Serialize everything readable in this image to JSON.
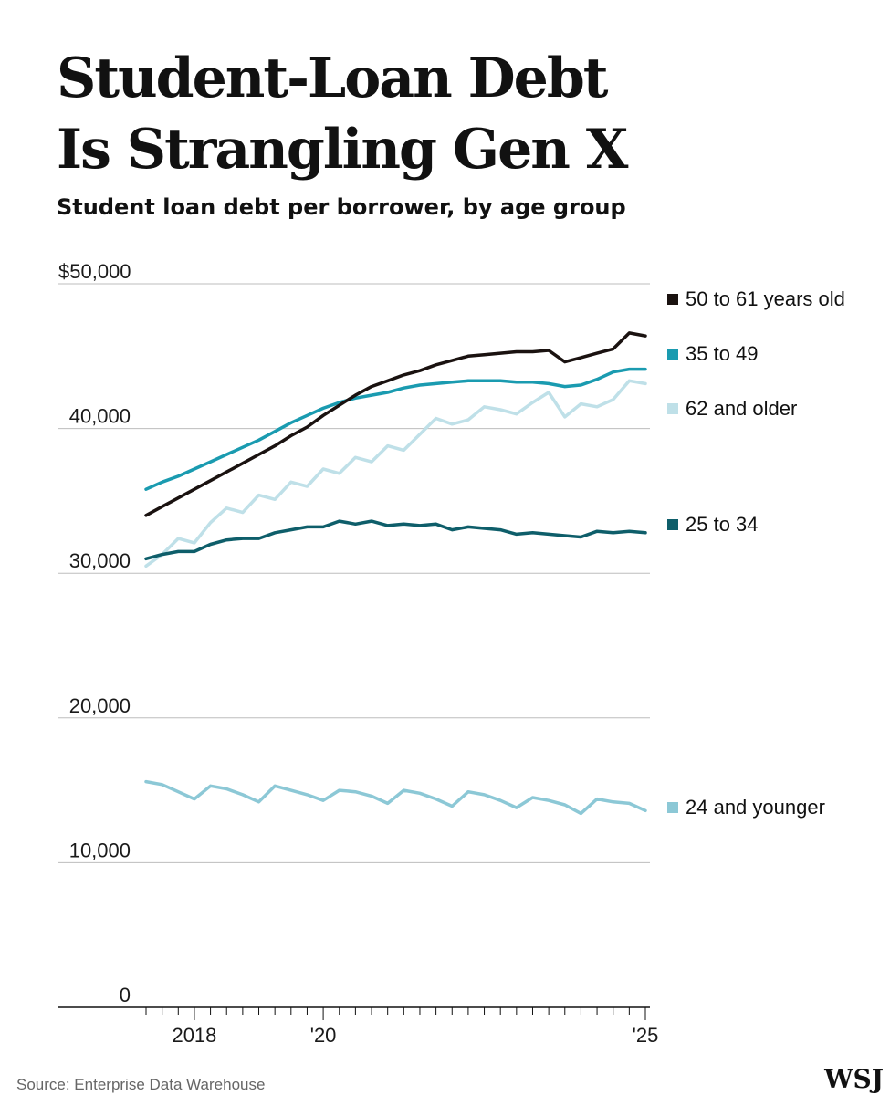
{
  "title_lines": [
    "Student-Loan Debt",
    "Is Strangling Gen X"
  ],
  "chart_data": {
    "type": "line",
    "subtitle": "Student loan debt per borrower, by age group",
    "ylim": [
      0,
      50000
    ],
    "y_ticks": [
      0,
      10000,
      20000,
      30000,
      40000,
      50000
    ],
    "y_tick_labels": [
      "0",
      "10,000",
      "20,000",
      "30,000",
      "40,000",
      "$50,000"
    ],
    "x_range": [
      2017.25,
      2025.0
    ],
    "x_ticks": [
      2018,
      2020,
      2025
    ],
    "x_tick_labels": [
      "2018",
      "'20",
      "'25"
    ],
    "x_quarters_from": 2017.25,
    "x_quarters_count": 32,
    "grid": "horizontal",
    "legend_placement": "right",
    "series": [
      {
        "name": "50 to 61 years old",
        "color": "#1a1210",
        "x": [
          2017.25,
          2017.5,
          2017.75,
          2018,
          2018.25,
          2018.5,
          2018.75,
          2019,
          2019.25,
          2019.5,
          2019.75,
          2020,
          2020.25,
          2020.5,
          2020.75,
          2021,
          2021.25,
          2021.5,
          2021.75,
          2022,
          2022.25,
          2022.5,
          2022.75,
          2023,
          2023.25,
          2023.5,
          2023.75,
          2024,
          2024.25,
          2024.5,
          2024.75,
          2025
        ],
        "values": [
          34000,
          34600,
          35200,
          35800,
          36400,
          37000,
          37600,
          38200,
          38800,
          39500,
          40100,
          40900,
          41600,
          42300,
          42900,
          43300,
          43700,
          44000,
          44400,
          44700,
          45000,
          45100,
          45200,
          45300,
          45300,
          45400,
          44600,
          44900,
          45200,
          45500,
          46600,
          46400
        ]
      },
      {
        "name": "35 to 49",
        "color": "#1a9bb0",
        "x": [
          2017.25,
          2017.5,
          2017.75,
          2018,
          2018.25,
          2018.5,
          2018.75,
          2019,
          2019.25,
          2019.5,
          2019.75,
          2020,
          2020.25,
          2020.5,
          2020.75,
          2021,
          2021.25,
          2021.5,
          2021.75,
          2022,
          2022.25,
          2022.5,
          2022.75,
          2023,
          2023.25,
          2023.5,
          2023.75,
          2024,
          2024.25,
          2024.5,
          2024.75,
          2025
        ],
        "values": [
          35800,
          36300,
          36700,
          37200,
          37700,
          38200,
          38700,
          39200,
          39800,
          40400,
          40900,
          41400,
          41800,
          42100,
          42300,
          42500,
          42800,
          43000,
          43100,
          43200,
          43300,
          43300,
          43300,
          43200,
          43200,
          43100,
          42900,
          43000,
          43400,
          43900,
          44100,
          44100
        ]
      },
      {
        "name": "62 and older",
        "color": "#bfe0e8",
        "x": [
          2017.25,
          2017.5,
          2017.75,
          2018,
          2018.25,
          2018.5,
          2018.75,
          2019,
          2019.25,
          2019.5,
          2019.75,
          2020,
          2020.25,
          2020.5,
          2020.75,
          2021,
          2021.25,
          2021.5,
          2021.75,
          2022,
          2022.25,
          2022.5,
          2022.75,
          2023,
          2023.25,
          2023.5,
          2023.75,
          2024,
          2024.25,
          2024.5,
          2024.75,
          2025
        ],
        "values": [
          30500,
          31300,
          32400,
          32100,
          33500,
          34500,
          34200,
          35400,
          35100,
          36300,
          36000,
          37200,
          36900,
          38000,
          37700,
          38800,
          38500,
          39600,
          40700,
          40300,
          40600,
          41500,
          41300,
          41000,
          41800,
          42500,
          40800,
          41700,
          41500,
          42000,
          43300,
          43100
        ]
      },
      {
        "name": "25 to 34",
        "color": "#0e5e6a",
        "x": [
          2017.25,
          2017.5,
          2017.75,
          2018,
          2018.25,
          2018.5,
          2018.75,
          2019,
          2019.25,
          2019.5,
          2019.75,
          2020,
          2020.25,
          2020.5,
          2020.75,
          2021,
          2021.25,
          2021.5,
          2021.75,
          2022,
          2022.25,
          2022.5,
          2022.75,
          2023,
          2023.25,
          2023.5,
          2023.75,
          2024,
          2024.25,
          2024.5,
          2024.75,
          2025
        ],
        "values": [
          31000,
          31300,
          31500,
          31500,
          32000,
          32300,
          32400,
          32400,
          32800,
          33000,
          33200,
          33200,
          33600,
          33400,
          33600,
          33300,
          33400,
          33300,
          33400,
          33000,
          33200,
          33100,
          33000,
          32700,
          32800,
          32700,
          32600,
          32500,
          32900,
          32800,
          32900,
          32800
        ]
      },
      {
        "name": "24 and younger",
        "color": "#8cc8d6",
        "x": [
          2017.25,
          2017.5,
          2017.75,
          2018,
          2018.25,
          2018.5,
          2018.75,
          2019,
          2019.25,
          2019.5,
          2019.75,
          2020,
          2020.25,
          2020.5,
          2020.75,
          2021,
          2021.25,
          2021.5,
          2021.75,
          2022,
          2022.25,
          2022.5,
          2022.75,
          2023,
          2023.25,
          2023.5,
          2023.75,
          2024,
          2024.25,
          2024.5,
          2024.75,
          2025
        ],
        "values": [
          15600,
          15400,
          14900,
          14400,
          15300,
          15100,
          14700,
          14200,
          15300,
          15000,
          14700,
          14300,
          15000,
          14900,
          14600,
          14100,
          15000,
          14800,
          14400,
          13900,
          14900,
          14700,
          14300,
          13800,
          14500,
          14300,
          14000,
          13400,
          14400,
          14200,
          14100,
          13600
        ]
      }
    ]
  },
  "source": "Source: Enterprise Data Warehouse",
  "logo": "WSJ"
}
